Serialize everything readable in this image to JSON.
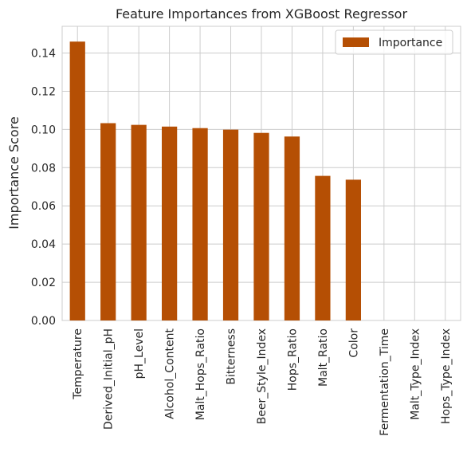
{
  "chart_data": {
    "type": "bar",
    "title": "Feature Importances from XGBoost Regressor",
    "xlabel": "",
    "ylabel": "Importance Score",
    "categories": [
      "Temperature",
      "Derived_Initial_pH",
      "pH_Level",
      "Alcohol_Content",
      "Malt_Hops_Ratio",
      "Bitterness",
      "Beer_Style_Index",
      "Hops_Ratio",
      "Malt_Ratio",
      "Color",
      "Fermentation_Time",
      "Malt_Type_Index",
      "Hops_Type_Index"
    ],
    "series": [
      {
        "name": "Importance",
        "color": "#b54f04",
        "values": [
          0.146,
          0.1033,
          0.1024,
          0.1015,
          0.1007,
          0.0999,
          0.0982,
          0.0963,
          0.0757,
          0.0737,
          0.0,
          0.0,
          0.0
        ]
      }
    ],
    "ylim": [
      0,
      0.154
    ],
    "yticks": [
      0.0,
      0.02,
      0.04,
      0.06,
      0.08,
      0.1,
      0.12,
      0.14
    ],
    "ytick_labels": [
      "0.00",
      "0.02",
      "0.04",
      "0.06",
      "0.08",
      "0.10",
      "0.12",
      "0.14"
    ],
    "grid": true,
    "legend_position": "top-right",
    "colors": {
      "background": "#ffffff",
      "grid": "#cccccc",
      "text": "#262626"
    }
  }
}
